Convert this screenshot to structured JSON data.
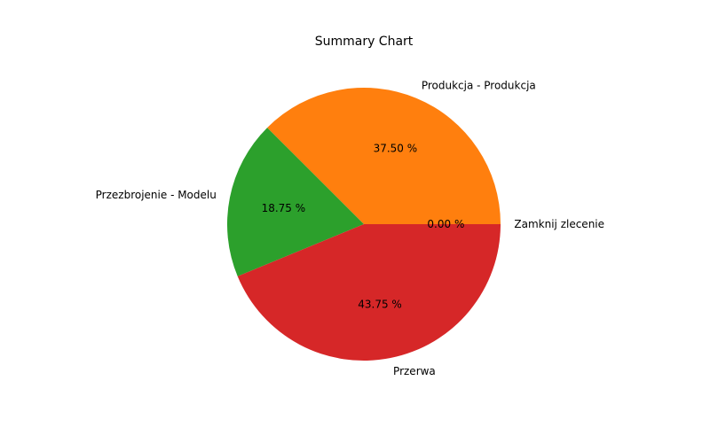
{
  "chart_data": {
    "type": "pie",
    "title": "Summary Chart",
    "start_angle_deg": 0,
    "direction": "counterclockwise",
    "slices": [
      {
        "label": "Zamknij zlecenie",
        "value": 0.0,
        "pct_label": "0.00 %",
        "color": "#1f77b4"
      },
      {
        "label": "Produkcja - Produkcja",
        "value": 37.5,
        "pct_label": "37.50 %",
        "color": "#ff7f0e"
      },
      {
        "label": "Przezbrojenie - Modelu",
        "value": 18.75,
        "pct_label": "18.75 %",
        "color": "#2ca02c"
      },
      {
        "label": "Przerwa",
        "value": 43.75,
        "pct_label": "43.75 %",
        "color": "#d62728"
      }
    ]
  }
}
